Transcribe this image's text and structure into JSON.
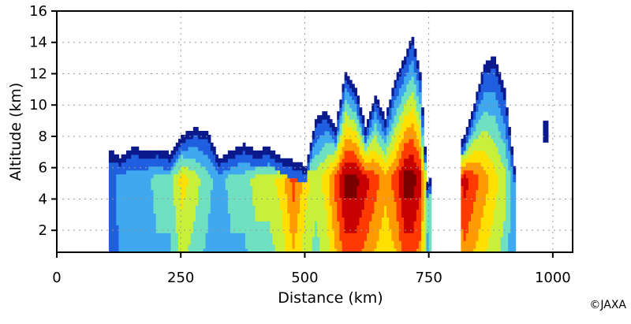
{
  "chart_data": {
    "type": "heatmap",
    "title": "",
    "xlabel": "Distance (km)",
    "ylabel": "Altitude (km)",
    "xlim": [
      0,
      1040
    ],
    "ylim": [
      0.6,
      16
    ],
    "x_ticks": [
      0,
      250,
      500,
      750,
      1000
    ],
    "y_ticks": [
      2,
      4,
      6,
      8,
      10,
      12,
      14,
      16
    ],
    "grid": true,
    "color_scale": [
      "#0a1a8c",
      "#1f5fe0",
      "#3fa8ee",
      "#6fe0c0",
      "#c8ef3a",
      "#ffe000",
      "#ff9a00",
      "#ff3a00",
      "#c80000",
      "#7a0000"
    ],
    "columns": [
      {
        "x": 105,
        "top": 7.0,
        "peak": 1
      },
      {
        "x": 125,
        "top": 6.5,
        "peak": 2
      },
      {
        "x": 150,
        "top": 7.2,
        "peak": 2
      },
      {
        "x": 175,
        "top": 7.0,
        "peak": 2
      },
      {
        "x": 200,
        "top": 7.1,
        "peak": 3
      },
      {
        "x": 225,
        "top": 6.8,
        "peak": 3
      },
      {
        "x": 250,
        "top": 8.0,
        "peak": 5
      },
      {
        "x": 275,
        "top": 8.4,
        "peak": 4
      },
      {
        "x": 300,
        "top": 8.2,
        "peak": 3
      },
      {
        "x": 325,
        "top": 6.5,
        "peak": 2
      },
      {
        "x": 350,
        "top": 7.0,
        "peak": 3
      },
      {
        "x": 375,
        "top": 7.4,
        "peak": 3
      },
      {
        "x": 400,
        "top": 7.0,
        "peak": 4
      },
      {
        "x": 425,
        "top": 7.2,
        "peak": 4
      },
      {
        "x": 450,
        "top": 6.6,
        "peak": 5
      },
      {
        "x": 475,
        "top": 6.3,
        "peak": 7
      },
      {
        "x": 500,
        "top": 6.0,
        "peak": 5
      },
      {
        "x": 520,
        "top": 9.0,
        "peak": 4
      },
      {
        "x": 540,
        "top": 9.5,
        "peak": 5
      },
      {
        "x": 560,
        "top": 8.5,
        "peak": 7
      },
      {
        "x": 580,
        "top": 12.0,
        "peak": 9
      },
      {
        "x": 600,
        "top": 11.0,
        "peak": 9
      },
      {
        "x": 620,
        "top": 8.5,
        "peak": 8
      },
      {
        "x": 640,
        "top": 10.5,
        "peak": 7
      },
      {
        "x": 660,
        "top": 9.0,
        "peak": 6
      },
      {
        "x": 680,
        "top": 11.5,
        "peak": 7
      },
      {
        "x": 700,
        "top": 13.0,
        "peak": 9
      },
      {
        "x": 715,
        "top": 14.3,
        "peak": 9
      },
      {
        "x": 730,
        "top": 12.0,
        "peak": 8
      },
      {
        "x": 745,
        "top": 5.0,
        "peak": 3
      },
      {
        "x": 820,
        "top": 8.0,
        "peak": 8
      },
      {
        "x": 840,
        "top": 10.0,
        "peak": 7
      },
      {
        "x": 860,
        "top": 12.5,
        "peak": 6
      },
      {
        "x": 880,
        "top": 13.0,
        "peak": 5
      },
      {
        "x": 900,
        "top": 11.0,
        "peak": 4
      },
      {
        "x": 920,
        "top": 6.0,
        "peak": 2
      }
    ],
    "isolated_echo": {
      "x": 985,
      "altitude": [
        7.6,
        9.0
      ]
    }
  },
  "credit": "©JAXA"
}
